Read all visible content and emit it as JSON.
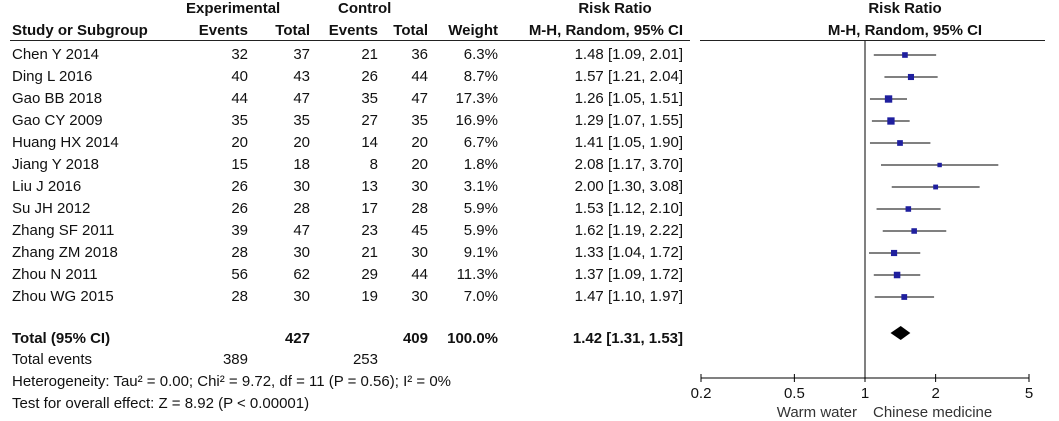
{
  "header": {
    "experimental": "Experimental",
    "control": "Control",
    "risk_ratio": "Risk Ratio",
    "risk_ratio_plot": "Risk Ratio",
    "study": "Study or Subgroup",
    "events_e": "Events",
    "total_e": "Total",
    "events_c": "Events",
    "total_c": "Total",
    "weight": "Weight",
    "method": "M-H, Random, 95% CI",
    "method_plot": "M-H, Random, 95% CI"
  },
  "rows": [
    {
      "study": "Chen Y 2014",
      "e_events": "32",
      "e_total": "37",
      "c_events": "21",
      "c_total": "36",
      "weight": "6.3%",
      "ci": "1.48 [1.09, 2.01]"
    },
    {
      "study": "Ding L 2016",
      "e_events": "40",
      "e_total": "43",
      "c_events": "26",
      "c_total": "44",
      "weight": "8.7%",
      "ci": "1.57 [1.21, 2.04]"
    },
    {
      "study": "Gao BB 2018",
      "e_events": "44",
      "e_total": "47",
      "c_events": "35",
      "c_total": "47",
      "weight": "17.3%",
      "ci": "1.26 [1.05, 1.51]"
    },
    {
      "study": "Gao CY 2009",
      "e_events": "35",
      "e_total": "35",
      "c_events": "27",
      "c_total": "35",
      "weight": "16.9%",
      "ci": "1.29 [1.07, 1.55]"
    },
    {
      "study": "Huang HX 2014",
      "e_events": "20",
      "e_total": "20",
      "c_events": "14",
      "c_total": "20",
      "weight": "6.7%",
      "ci": "1.41 [1.05, 1.90]"
    },
    {
      "study": "Jiang Y 2018",
      "e_events": "15",
      "e_total": "18",
      "c_events": "8",
      "c_total": "20",
      "weight": "1.8%",
      "ci": "2.08 [1.17, 3.70]"
    },
    {
      "study": "Liu J 2016",
      "e_events": "26",
      "e_total": "30",
      "c_events": "13",
      "c_total": "30",
      "weight": "3.1%",
      "ci": "2.00 [1.30, 3.08]"
    },
    {
      "study": "Su JH 2012",
      "e_events": "26",
      "e_total": "28",
      "c_events": "17",
      "c_total": "28",
      "weight": "5.9%",
      "ci": "1.53 [1.12, 2.10]"
    },
    {
      "study": "Zhang SF 2011",
      "e_events": "39",
      "e_total": "47",
      "c_events": "23",
      "c_total": "45",
      "weight": "5.9%",
      "ci": "1.62 [1.19, 2.22]"
    },
    {
      "study": "Zhang ZM 2018",
      "e_events": "28",
      "e_total": "30",
      "c_events": "21",
      "c_total": "30",
      "weight": "9.1%",
      "ci": "1.33 [1.04, 1.72]"
    },
    {
      "study": "Zhou N 2011",
      "e_events": "56",
      "e_total": "62",
      "c_events": "29",
      "c_total": "44",
      "weight": "11.3%",
      "ci": "1.37 [1.09, 1.72]"
    },
    {
      "study": "Zhou WG 2015",
      "e_events": "28",
      "e_total": "30",
      "c_events": "19",
      "c_total": "30",
      "weight": "7.0%",
      "ci": "1.47 [1.10, 1.97]"
    }
  ],
  "total": {
    "label": "Total (95% CI)",
    "e_total": "427",
    "c_total": "409",
    "weight": "100.0%",
    "ci": "1.42 [1.31, 1.53]"
  },
  "total_events": {
    "label": "Total events",
    "e_events": "389",
    "c_events": "253"
  },
  "heterogeneity": "Heterogeneity: Tau² = 0.00; Chi² = 9.72, df = 11 (P = 0.56); I² = 0%",
  "overall_effect": "Test for overall effect: Z = 8.92 (P < 0.00001)",
  "chart_data": {
    "type": "forest",
    "scale": "log",
    "xlim": [
      0.2,
      5
    ],
    "xticks": [
      0.2,
      0.5,
      1,
      2,
      5
    ],
    "xtick_labels": [
      "0.2",
      "0.5",
      "1",
      "2",
      "5"
    ],
    "null_line": 1,
    "favours_left": "Warm water",
    "favours_right": "Chinese medicine",
    "studies": [
      {
        "name": "Chen Y 2014",
        "rr": 1.48,
        "lower": 1.09,
        "upper": 2.01,
        "weight": 6.3
      },
      {
        "name": "Ding L 2016",
        "rr": 1.57,
        "lower": 1.21,
        "upper": 2.04,
        "weight": 8.7
      },
      {
        "name": "Gao BB 2018",
        "rr": 1.26,
        "lower": 1.05,
        "upper": 1.51,
        "weight": 17.3
      },
      {
        "name": "Gao CY 2009",
        "rr": 1.29,
        "lower": 1.07,
        "upper": 1.55,
        "weight": 16.9
      },
      {
        "name": "Huang HX 2014",
        "rr": 1.41,
        "lower": 1.05,
        "upper": 1.9,
        "weight": 6.7
      },
      {
        "name": "Jiang Y 2018",
        "rr": 2.08,
        "lower": 1.17,
        "upper": 3.7,
        "weight": 1.8
      },
      {
        "name": "Liu J 2016",
        "rr": 2.0,
        "lower": 1.3,
        "upper": 3.08,
        "weight": 3.1
      },
      {
        "name": "Su JH 2012",
        "rr": 1.53,
        "lower": 1.12,
        "upper": 2.1,
        "weight": 5.9
      },
      {
        "name": "Zhang SF 2011",
        "rr": 1.62,
        "lower": 1.19,
        "upper": 2.22,
        "weight": 5.9
      },
      {
        "name": "Zhang ZM 2018",
        "rr": 1.33,
        "lower": 1.04,
        "upper": 1.72,
        "weight": 9.1
      },
      {
        "name": "Zhou N 2011",
        "rr": 1.37,
        "lower": 1.09,
        "upper": 1.72,
        "weight": 11.3
      },
      {
        "name": "Zhou WG 2015",
        "rr": 1.47,
        "lower": 1.1,
        "upper": 1.97,
        "weight": 7.0
      }
    ],
    "pooled": {
      "rr": 1.42,
      "lower": 1.31,
      "upper": 1.53
    },
    "colors": {
      "square": "#1f1f9e",
      "line": "#000000",
      "diamond": "#000000"
    }
  }
}
